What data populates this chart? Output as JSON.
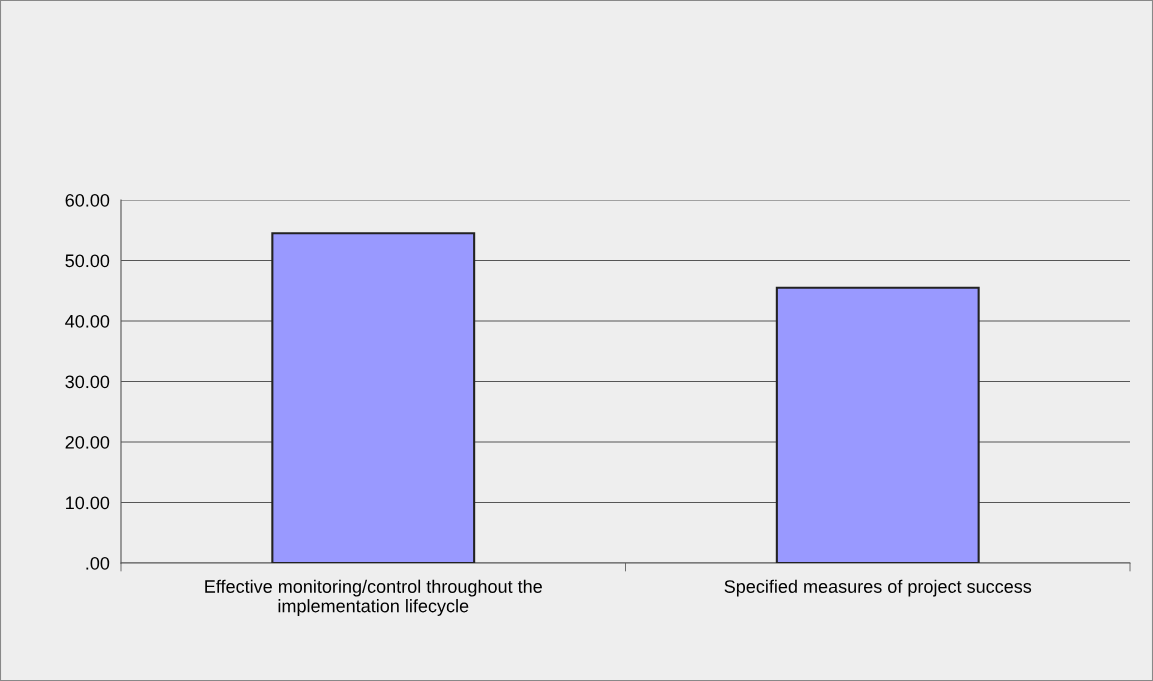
{
  "chart_data": {
    "type": "bar",
    "categories": [
      "Effective monitoring/control throughout the\nimplementation lifecycle",
      "Specified measures of project success"
    ],
    "values": [
      54.5,
      45.5
    ],
    "color": "#9999ff",
    "ylim": [
      0,
      60
    ],
    "yticks": [
      {
        "value": 0,
        "label": ".00"
      },
      {
        "value": 10,
        "label": "10.00"
      },
      {
        "value": 20,
        "label": "20.00"
      },
      {
        "value": 30,
        "label": "30.00"
      },
      {
        "value": 40,
        "label": "40.00"
      },
      {
        "value": 50,
        "label": "50.00"
      },
      {
        "value": 60,
        "label": "60.00"
      }
    ],
    "grid": "y",
    "legend": false
  }
}
